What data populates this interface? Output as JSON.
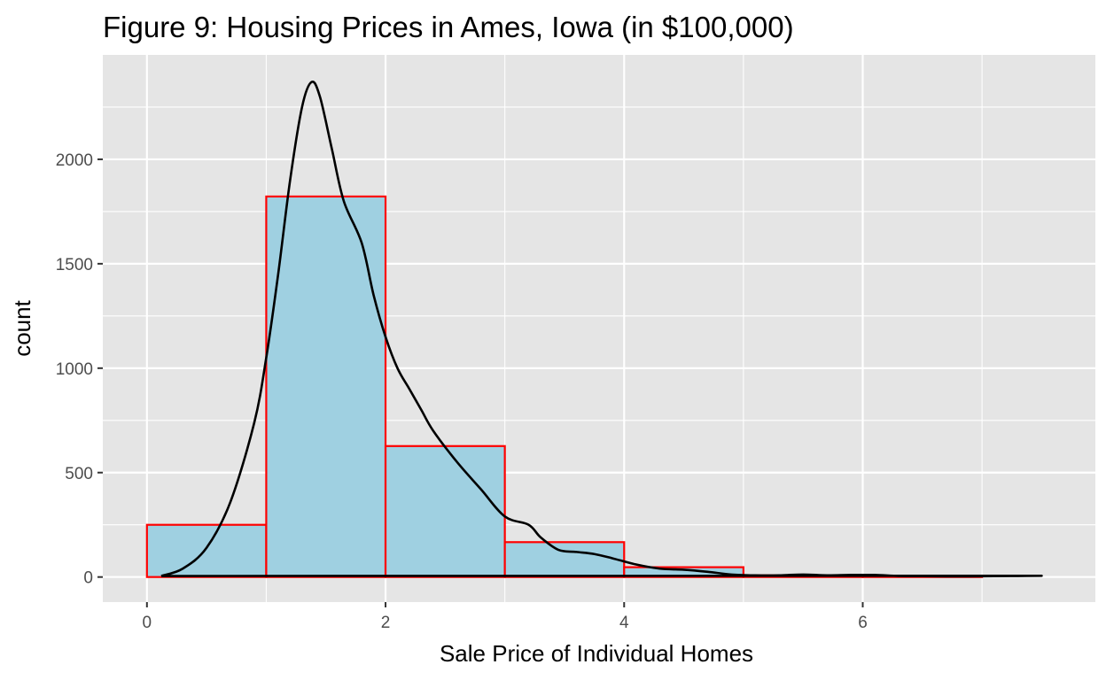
{
  "chart_data": {
    "type": "bar",
    "title": "Figure 9: Housing Prices in Ames, Iowa (in $100,000)",
    "xlabel": "Sale Price of Individual Homes",
    "ylabel": "count",
    "xlim": [
      -0.37,
      7.95
    ],
    "ylim": [
      -120,
      2500
    ],
    "x_ticks": [
      0,
      2,
      4,
      6
    ],
    "y_ticks": [
      0,
      500,
      1000,
      1500,
      2000
    ],
    "x_tick_labels": [
      "0",
      "2",
      "4",
      "6"
    ],
    "y_tick_labels": [
      "0",
      "500",
      "1000",
      "1500",
      "2000"
    ],
    "grid": true,
    "bins": [
      {
        "start": 0,
        "end": 1,
        "count": 250
      },
      {
        "start": 1,
        "end": 2,
        "count": 1822
      },
      {
        "start": 2,
        "end": 3,
        "count": 627
      },
      {
        "start": 3,
        "end": 4,
        "count": 167
      },
      {
        "start": 4,
        "end": 5,
        "count": 47
      },
      {
        "start": 5,
        "end": 6,
        "count": 8
      },
      {
        "start": 6,
        "end": 7,
        "count": 6
      }
    ],
    "density_curve": {
      "x": [
        0.12,
        0.3,
        0.5,
        0.7,
        0.9,
        1.0,
        1.1,
        1.2,
        1.3,
        1.38,
        1.45,
        1.55,
        1.65,
        1.8,
        1.9,
        2.0,
        2.1,
        2.2,
        2.3,
        2.4,
        2.6,
        2.8,
        3.0,
        3.2,
        3.3,
        3.45,
        3.6,
        3.75,
        3.9,
        4.1,
        4.3,
        4.5,
        4.7,
        4.9,
        5.1,
        5.3,
        5.5,
        5.7,
        5.9,
        6.1,
        6.3,
        6.5,
        6.8,
        7.1,
        7.3,
        7.5
      ],
      "y": [
        5,
        40,
        140,
        360,
        740,
        1050,
        1450,
        1900,
        2250,
        2370,
        2300,
        2050,
        1800,
        1600,
        1350,
        1150,
        1000,
        900,
        800,
        700,
        550,
        420,
        290,
        250,
        190,
        130,
        120,
        110,
        90,
        60,
        40,
        35,
        25,
        12,
        8,
        8,
        12,
        8,
        10,
        10,
        5,
        4,
        3,
        4,
        5,
        6
      ]
    },
    "colors": {
      "panel_background": "#e5e5e5",
      "grid": "#ffffff",
      "bar_fill": "#9fd0e1",
      "bar_outline": "#ff0000",
      "density_line": "#000000",
      "tick_text": "#4d4d4d",
      "text": "#000000"
    }
  }
}
